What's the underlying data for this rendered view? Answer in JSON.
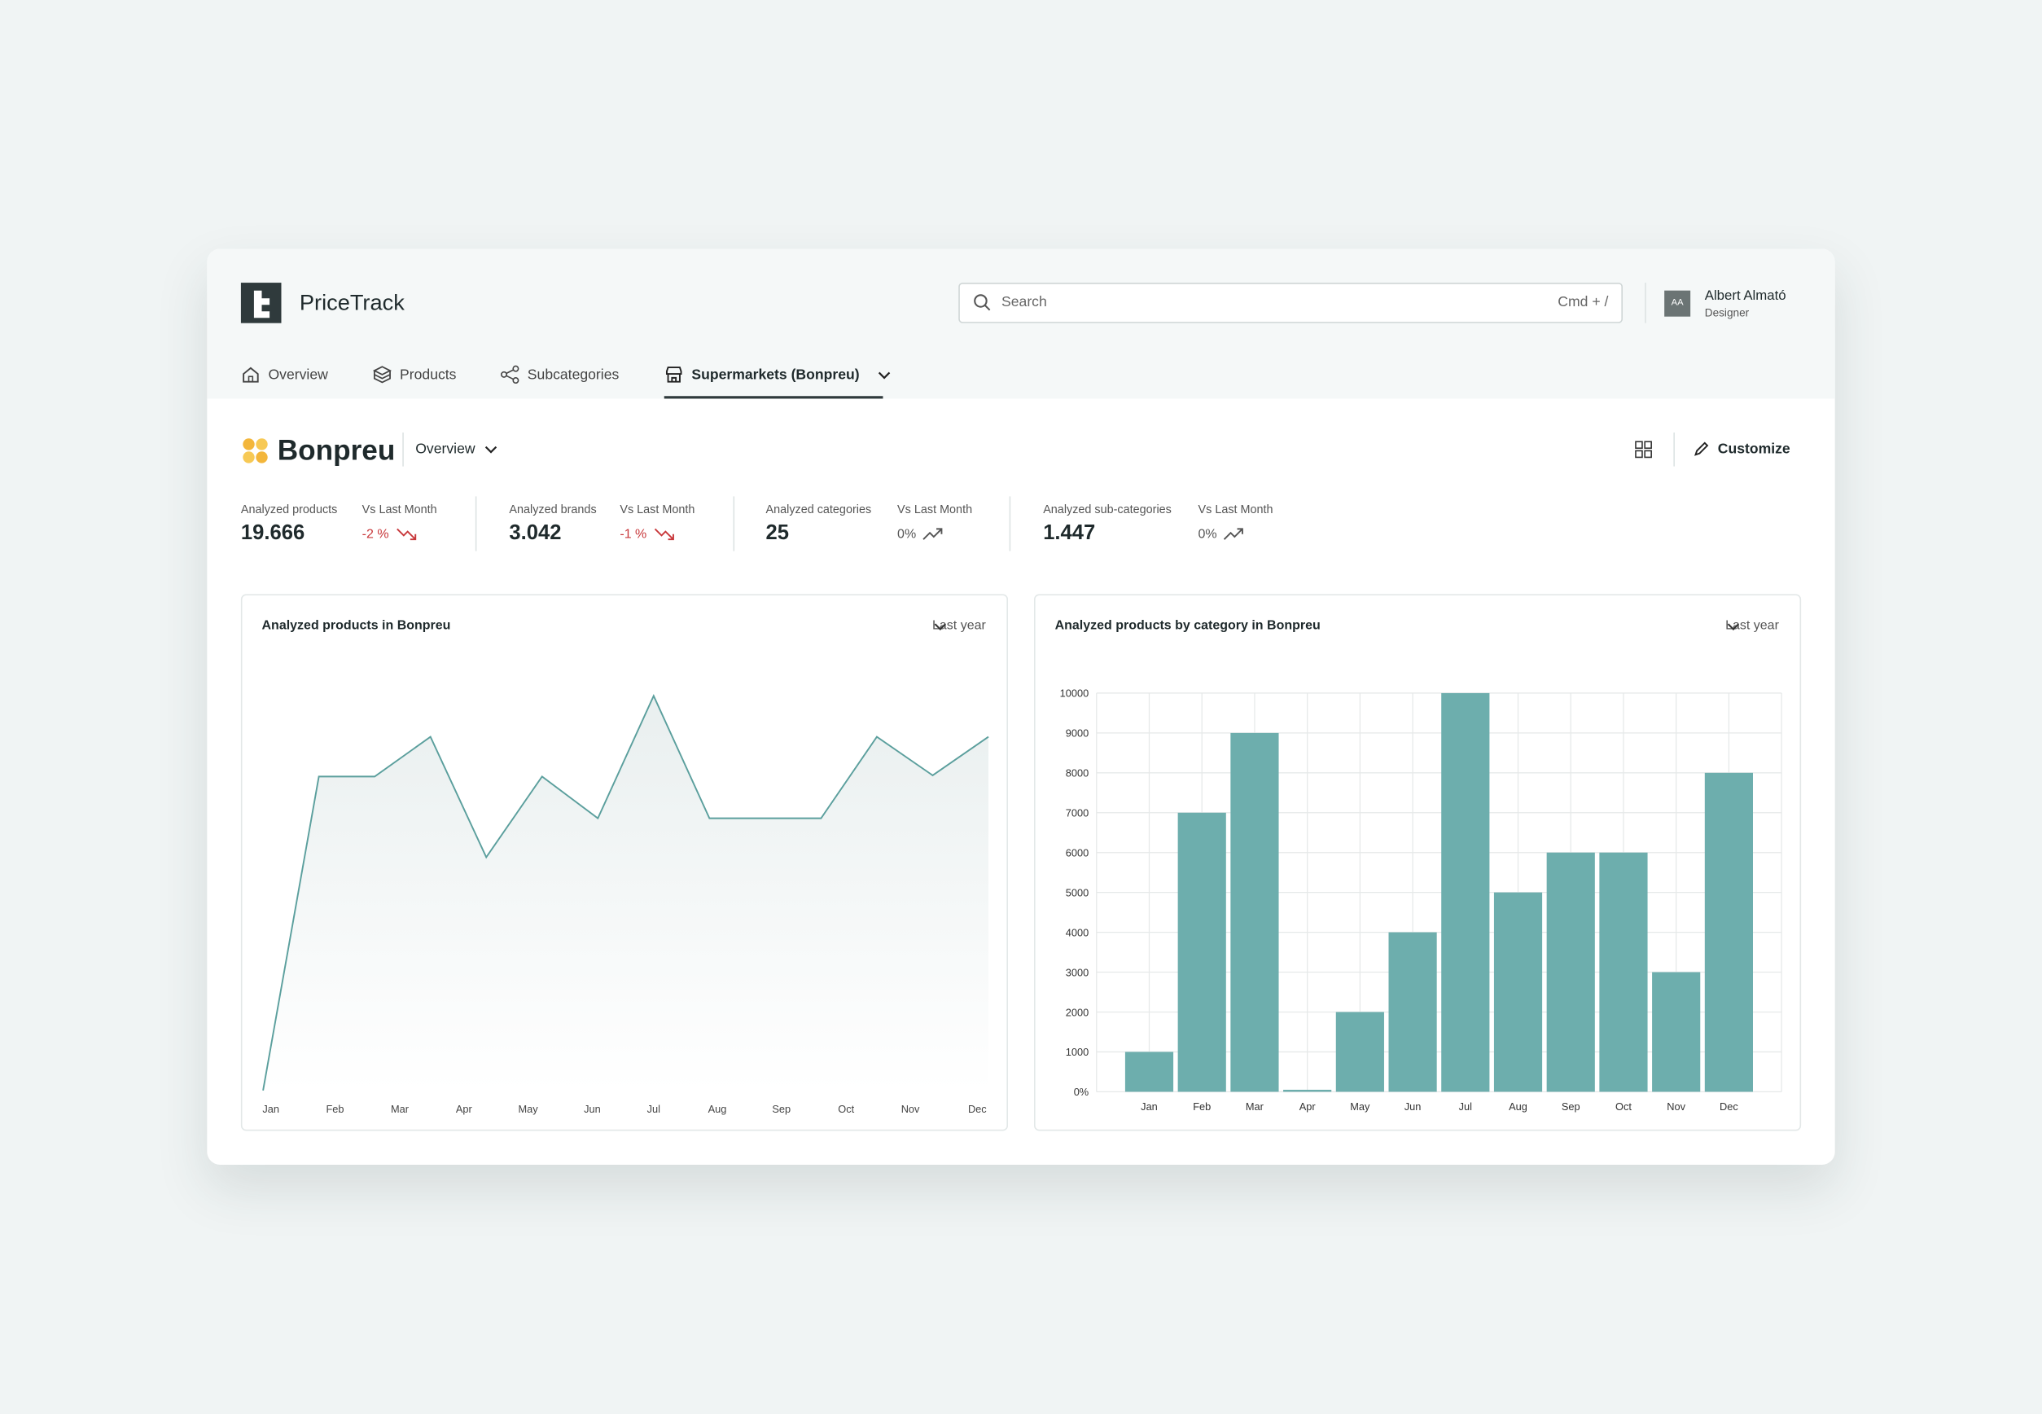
{
  "header": {
    "brand": "PriceTrack",
    "search_placeholder": "Search",
    "search_shortcut": "Cmd + /",
    "user": {
      "initials": "AA",
      "name": "Albert Almató",
      "role": "Designer"
    }
  },
  "nav": [
    {
      "label": "Overview",
      "active": false
    },
    {
      "label": "Products",
      "active": false
    },
    {
      "label": "Subcategories",
      "active": false
    },
    {
      "label": "Supermarkets (Bonpreu)",
      "active": true
    }
  ],
  "page": {
    "title": "Bonpreu",
    "view": "Overview",
    "action": "Customize"
  },
  "stats": [
    {
      "label": "Analyzed products",
      "value": "19.666",
      "compare_label": "Vs Last Month",
      "change": "-2 %",
      "trend": "down"
    },
    {
      "label": "Analyzed brands",
      "value": "3.042",
      "compare_label": "Vs Last Month",
      "change": "-1 %",
      "trend": "down"
    },
    {
      "label": "Analyzed categories",
      "value": "25",
      "compare_label": "Vs Last Month",
      "change": "0%",
      "trend": "up"
    },
    {
      "label": "Analyzed sub-categories",
      "value": "1.447",
      "compare_label": "Vs Last Month",
      "change": "0%",
      "trend": "up"
    }
  ],
  "charts": [
    {
      "type": "line",
      "title": "Analyzed products in Bonpreu",
      "period": "Last year",
      "color": "#5b9f9d",
      "x": [
        0,
        1,
        2,
        3,
        4,
        5,
        6,
        7,
        8,
        9,
        10,
        11,
        12,
        13
      ],
      "values": [
        0,
        7900,
        7900,
        8900,
        5870,
        7900,
        6850,
        9930,
        6850,
        6850,
        6850,
        8900,
        7930,
        8900
      ],
      "xlim": [
        0,
        13
      ],
      "ylim": [
        0,
        10000
      ],
      "xticks": [
        {
          "value": 0.14,
          "label": "Jan"
        },
        {
          "value": 1.29,
          "label": "Feb"
        },
        {
          "value": 2.45,
          "label": "Mar"
        },
        {
          "value": 3.6,
          "label": "Apr"
        },
        {
          "value": 4.75,
          "label": "May"
        },
        {
          "value": 5.9,
          "label": "Jun"
        },
        {
          "value": 7.0,
          "label": "Jul"
        },
        {
          "value": 8.14,
          "label": "Aug"
        },
        {
          "value": 9.29,
          "label": "Sep"
        },
        {
          "value": 10.45,
          "label": "Oct"
        },
        {
          "value": 11.6,
          "label": "Nov"
        },
        {
          "value": 12.8,
          "label": "Dec"
        }
      ]
    },
    {
      "type": "bar",
      "title": "Analyzed products by category in Bonpreu",
      "period": "Last year",
      "color": "#6daead",
      "categories": [
        "Jan",
        "Feb",
        "Mar",
        "Apr",
        "May",
        "Jun",
        "Jul",
        "Aug",
        "Sep",
        "Oct",
        "Nov",
        "Dec"
      ],
      "values": [
        1000,
        7000,
        9000,
        50,
        2000,
        4000,
        10000,
        5000,
        6000,
        6000,
        3000,
        8000
      ],
      "ylim": [
        0,
        10000
      ],
      "yticks": [
        {
          "value": 0,
          "label": "0%"
        },
        1000,
        2000,
        3000,
        4000,
        5000,
        6000,
        7000,
        8000,
        9000,
        10000
      ],
      "grid": true
    }
  ]
}
